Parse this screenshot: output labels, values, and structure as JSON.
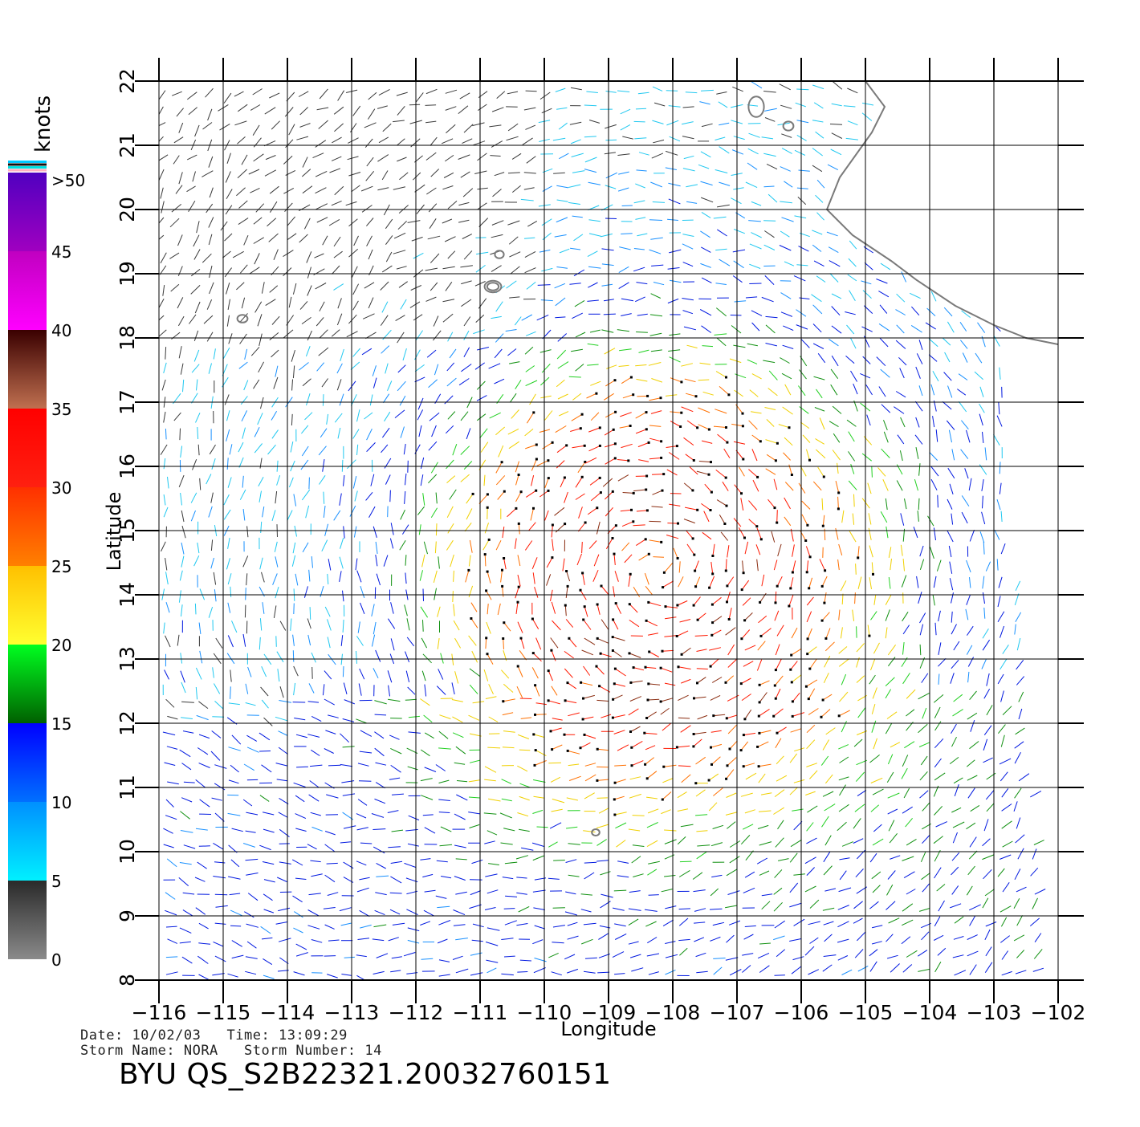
{
  "legend": {
    "unit": "knots",
    "bins": [
      {
        "min": 0,
        "max": 5,
        "colors": [
          "#8a8a8a",
          "#2a2a2a"
        ]
      },
      {
        "min": 5,
        "max": 10,
        "colors": [
          "#00f0ff",
          "#0090ff"
        ]
      },
      {
        "min": 10,
        "max": 15,
        "colors": [
          "#0070ff",
          "#0000ff"
        ]
      },
      {
        "min": 15,
        "max": 20,
        "colors": [
          "#006000",
          "#00ff20"
        ]
      },
      {
        "min": 20,
        "max": 25,
        "colors": [
          "#ffff30",
          "#ffc000"
        ]
      },
      {
        "min": 25,
        "max": 30,
        "colors": [
          "#ff8000",
          "#ff3000"
        ]
      },
      {
        "min": 30,
        "max": 35,
        "colors": [
          "#ff2010",
          "#ff0000"
        ]
      },
      {
        "min": 35,
        "max": 40,
        "colors": [
          "#c07050",
          "#3a0000"
        ]
      },
      {
        "min": 40,
        "max": 45,
        "colors": [
          "#ff00ff",
          "#c000c0"
        ]
      },
      {
        "min": 45,
        "max": 50,
        "colors": [
          "#a000c0",
          "#5000c0"
        ]
      }
    ],
    "labels": [
      "0",
      "5",
      "10",
      "15",
      "20",
      "25",
      "30",
      "35",
      "40",
      "45",
      ">50"
    ],
    "top_stripes": [
      "#00c8ff",
      "#101010",
      "#00e0e0",
      "#ffb0c0"
    ]
  },
  "map": {
    "lon_range": [
      -116,
      -102
    ],
    "lat_range": [
      8,
      22
    ],
    "lon_ticks": [
      -116,
      -115,
      -114,
      -113,
      -112,
      -111,
      -110,
      -109,
      -108,
      -107,
      -106,
      -105,
      -104,
      -103,
      -102
    ],
    "lon_tick_labels": [
      "−116",
      "−115",
      "−114",
      "−113",
      "−112",
      "−111",
      "−110",
      "−109",
      "−108",
      "−107",
      "−106",
      "−105",
      "−104",
      "−103",
      "−102"
    ],
    "lat_ticks": [
      8,
      9,
      10,
      11,
      12,
      13,
      14,
      15,
      16,
      17,
      18,
      19,
      20,
      21,
      22
    ],
    "lat_tick_labels": [
      "8",
      "9",
      "10",
      "11",
      "12",
      "13",
      "14",
      "15",
      "16",
      "17",
      "18",
      "19",
      "20",
      "21",
      "22"
    ],
    "xlabel": "Longitude",
    "ylabel": "Latitude",
    "grid": true,
    "storm_center": {
      "lon": -108.2,
      "lat": 14.4
    },
    "coastline": [
      [
        -105.0,
        22.0
      ],
      [
        -104.7,
        21.6
      ],
      [
        -104.9,
        21.2
      ],
      [
        -105.4,
        20.5
      ],
      [
        -105.6,
        20.0
      ],
      [
        -105.2,
        19.6
      ],
      [
        -104.6,
        19.2
      ],
      [
        -104.2,
        18.9
      ],
      [
        -103.6,
        18.5
      ],
      [
        -103.0,
        18.2
      ],
      [
        -102.5,
        18.0
      ],
      [
        -102.0,
        17.9
      ]
    ],
    "islands": [
      {
        "lon": -110.8,
        "lat": 18.8,
        "rlon": 0.13,
        "rlat": 0.09
      },
      {
        "lon": -110.8,
        "lat": 18.8,
        "rlon": 0.09,
        "rlat": 0.06
      },
      {
        "lon": -110.7,
        "lat": 19.3,
        "rlon": 0.07,
        "rlat": 0.06
      },
      {
        "lon": -114.7,
        "lat": 18.3,
        "rlon": 0.08,
        "rlat": 0.06
      },
      {
        "lon": -106.7,
        "lat": 21.6,
        "rlon": 0.12,
        "rlat": 0.16
      },
      {
        "lon": -106.2,
        "lat": 21.3,
        "rlon": 0.08,
        "rlat": 0.07
      },
      {
        "lon": -109.2,
        "lat": 10.3,
        "rlon": 0.06,
        "rlat": 0.05
      }
    ],
    "swath": {
      "east_edge_top_lon": -102.9,
      "east_edge_top_lat": 18.0,
      "east_edge_bottom_lon": -102.2,
      "east_edge_bottom_lat": 8.0
    }
  },
  "meta": {
    "date_label": "Date:",
    "date": "10/02/03",
    "time_label": "Time:",
    "time": "13:09:29",
    "storm_name_label": "Storm Name:",
    "storm_name": "NORA",
    "storm_number_label": "Storm Number:",
    "storm_number": "14",
    "file_id": "BYU QS_S2B22321.20032760151"
  }
}
